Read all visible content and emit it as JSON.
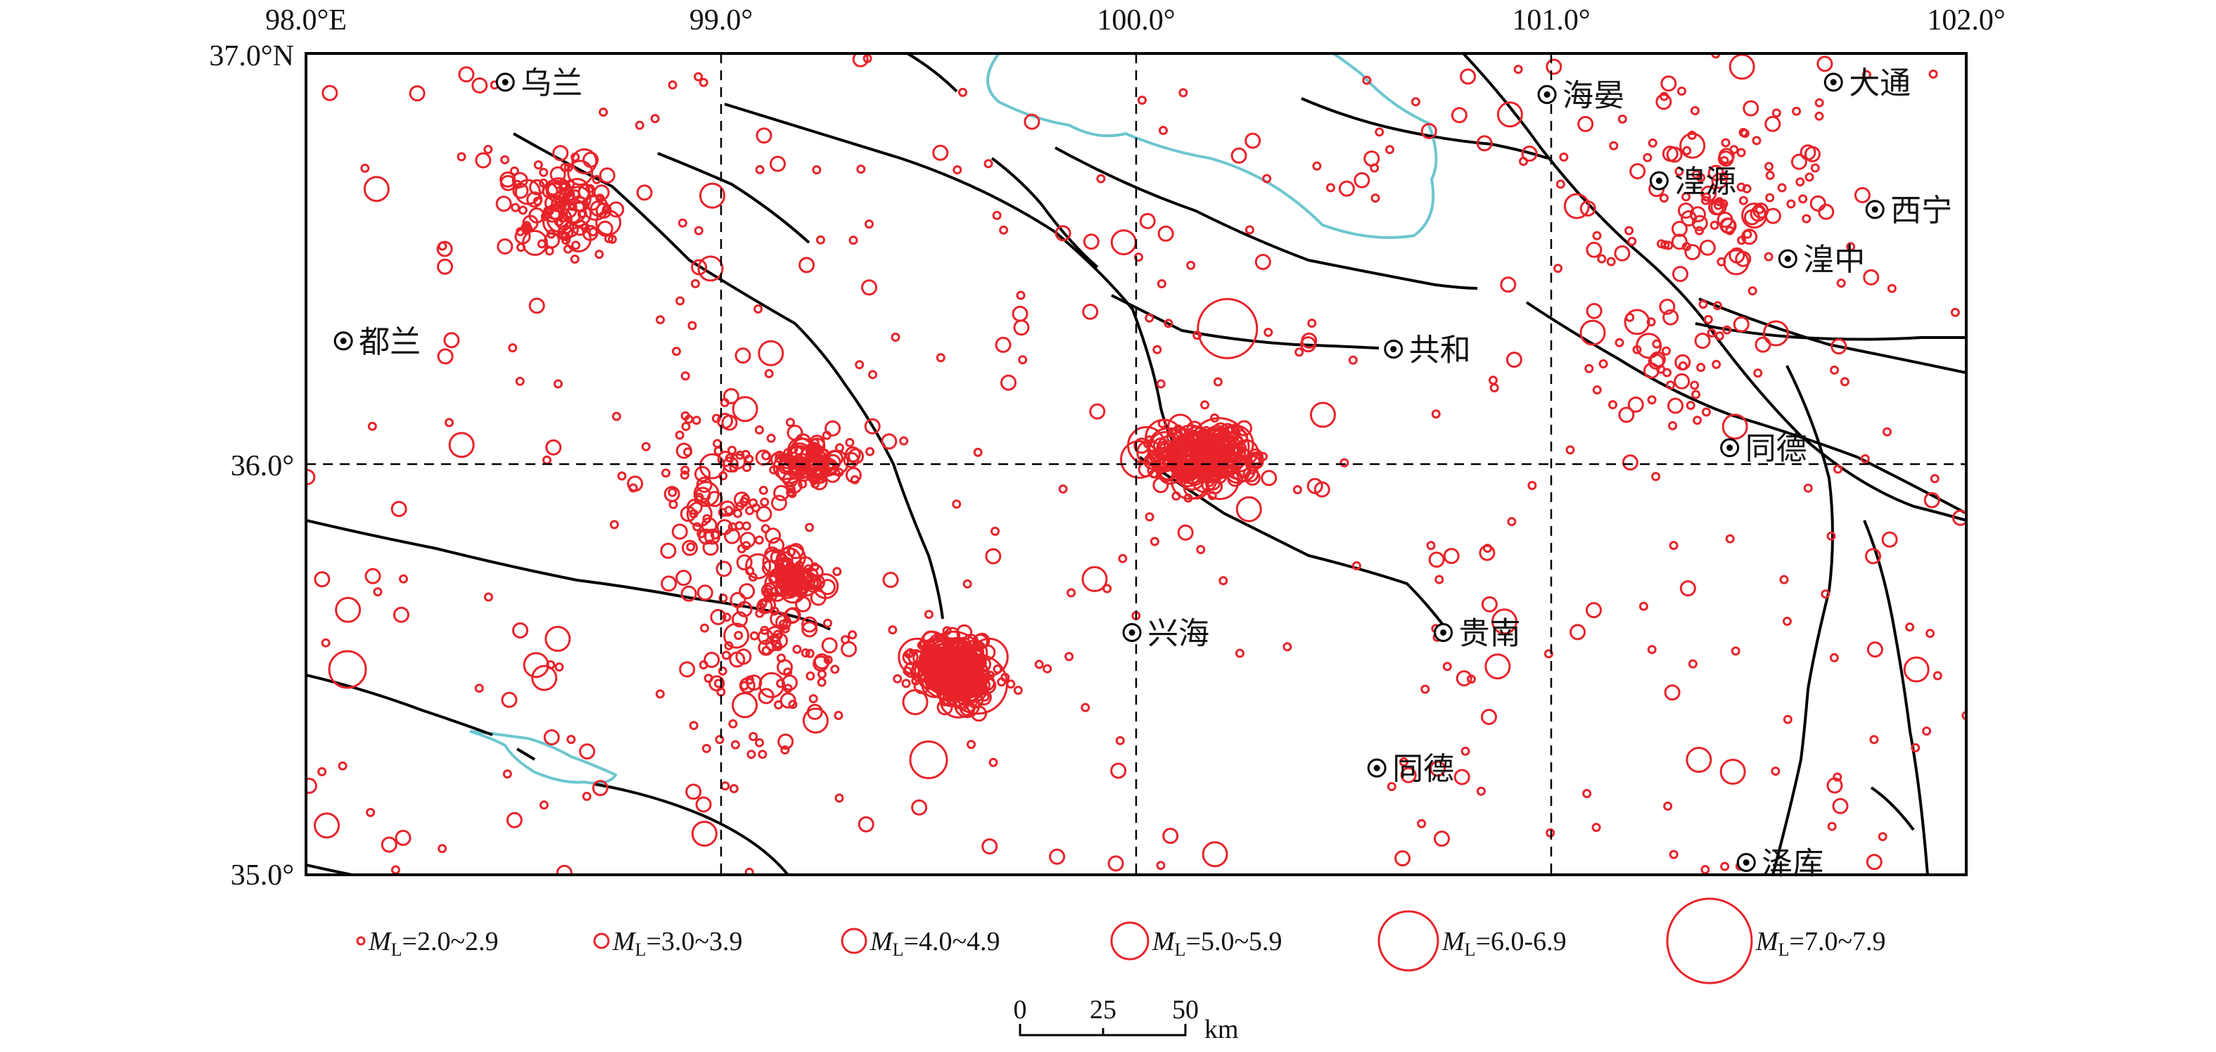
{
  "map": {
    "lon_labels": [
      "98.0°E",
      "99.0°",
      "100.0°",
      "101.0°",
      "102.0°"
    ],
    "lat_labels": [
      "37.0°N",
      "36.0°",
      "35.0°"
    ],
    "extent": {
      "lon": [
        98.0,
        102.0
      ],
      "lat": [
        35.0,
        37.0
      ]
    },
    "colors": {
      "quake": "#e8232a",
      "fault": "#000000",
      "water": "#6cc6cf",
      "frame": "#000000"
    },
    "cities": [
      {
        "name": "乌兰",
        "lon": 98.48,
        "lat": 36.93
      },
      {
        "name": "都兰",
        "lon": 98.09,
        "lat": 36.3
      },
      {
        "name": "共和",
        "lon": 100.62,
        "lat": 36.28
      },
      {
        "name": "海晏",
        "lon": 100.99,
        "lat": 36.9
      },
      {
        "name": "湟源",
        "lon": 101.26,
        "lat": 36.69
      },
      {
        "name": "大通",
        "lon": 101.68,
        "lat": 36.93
      },
      {
        "name": "西宁",
        "lon": 101.78,
        "lat": 36.62
      },
      {
        "name": "湟中",
        "lon": 101.57,
        "lat": 36.5
      },
      {
        "name": "同德",
        "lon": 101.43,
        "lat": 36.04
      },
      {
        "name": "兴海",
        "lon": 99.99,
        "lat": 35.59
      },
      {
        "name": "贵南",
        "lon": 100.74,
        "lat": 35.59
      },
      {
        "name": "同德",
        "lon": 100.58,
        "lat": 35.26
      },
      {
        "name": "泽库",
        "lon": 101.47,
        "lat": 35.03
      }
    ]
  },
  "legend": {
    "items": [
      {
        "prefix": "M",
        "sub": "L",
        "range": "=2.0~2.9",
        "level": 0
      },
      {
        "prefix": "M",
        "sub": "L",
        "range": "=3.0~3.9",
        "level": 1
      },
      {
        "prefix": "M",
        "sub": "L",
        "range": "=4.0~4.9",
        "level": 2
      },
      {
        "prefix": "M",
        "sub": "L",
        "range": "=5.0~5.9",
        "level": 3
      },
      {
        "prefix": "M",
        "sub": "L",
        "range": "=6.0-6.9",
        "level": 4
      },
      {
        "prefix": "M",
        "sub": "L",
        "range": "=7.0~7.9",
        "level": 5
      }
    ]
  },
  "scalebar": {
    "ticks": [
      "0",
      "25",
      "50"
    ],
    "unit": "km"
  }
}
